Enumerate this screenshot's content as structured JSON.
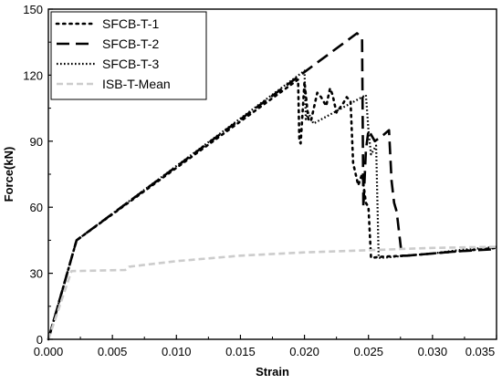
{
  "chart_data": {
    "type": "line",
    "xlabel": "Strain",
    "ylabel": "Force(kN)",
    "xlim": [
      0,
      0.035
    ],
    "ylim": [
      0,
      150
    ],
    "xticks": [
      "0.000",
      "0.005",
      "0.010",
      "0.015",
      "0.020",
      "0.025",
      "0.030",
      "0.035"
    ],
    "yticks": [
      "0",
      "30",
      "60",
      "90",
      "120",
      "150"
    ],
    "xtick_values": [
      0,
      0.005,
      0.01,
      0.015,
      0.02,
      0.025,
      0.03,
      0.035
    ],
    "ytick_values": [
      0,
      30,
      60,
      90,
      120,
      150
    ],
    "grid": false,
    "legend_position": "top-left",
    "series": [
      {
        "name": "SFCB-T-1",
        "style": "dotted-sparse",
        "color": "#000000",
        "points": [
          [
            0,
            0
          ],
          [
            0.0022,
            45
          ],
          [
            0.0195,
            118
          ],
          [
            0.0196,
            90
          ],
          [
            0.0197,
            89
          ],
          [
            0.02,
            117
          ],
          [
            0.0203,
            100
          ],
          [
            0.0205,
            99
          ],
          [
            0.021,
            112
          ],
          [
            0.0213,
            110
          ],
          [
            0.0217,
            106
          ],
          [
            0.022,
            114
          ],
          [
            0.0222,
            111
          ],
          [
            0.0225,
            103
          ],
          [
            0.023,
            107
          ],
          [
            0.0233,
            110
          ],
          [
            0.0236,
            108
          ],
          [
            0.0238,
            80
          ],
          [
            0.0242,
            70
          ],
          [
            0.0245,
            75
          ],
          [
            0.0248,
            62
          ],
          [
            0.025,
            60
          ],
          [
            0.0252,
            37
          ],
          [
            0.026,
            37.5
          ],
          [
            0.028,
            38
          ],
          [
            0.03,
            39
          ],
          [
            0.032,
            40
          ],
          [
            0.035,
            41.5
          ]
        ]
      },
      {
        "name": "SFCB-T-2",
        "style": "dashed",
        "color": "#000000",
        "points": [
          [
            0,
            0
          ],
          [
            0.0022,
            45
          ],
          [
            0.0241,
            139
          ],
          [
            0.0245,
            137
          ],
          [
            0.0246,
            60
          ],
          [
            0.0248,
            86
          ],
          [
            0.025,
            95
          ],
          [
            0.0255,
            90
          ],
          [
            0.0262,
            93
          ],
          [
            0.0266,
            95
          ],
          [
            0.0268,
            72
          ],
          [
            0.027,
            62
          ],
          [
            0.0272,
            58
          ],
          [
            0.0276,
            38
          ],
          [
            0.028,
            38
          ],
          [
            0.03,
            39
          ],
          [
            0.032,
            40
          ],
          [
            0.035,
            41
          ]
        ]
      },
      {
        "name": "SFCB-T-3",
        "style": "dotted-dense",
        "color": "#000000",
        "points": [
          [
            0,
            0
          ],
          [
            0.0022,
            45
          ],
          [
            0.02,
            122
          ],
          [
            0.0201,
            100
          ],
          [
            0.0203,
            103
          ],
          [
            0.0207,
            98
          ],
          [
            0.0245,
            110
          ],
          [
            0.0248,
            111
          ],
          [
            0.025,
            95
          ],
          [
            0.0252,
            84
          ],
          [
            0.0256,
            88
          ],
          [
            0.0258,
            37
          ],
          [
            0.026,
            37
          ],
          [
            0.028,
            38
          ],
          [
            0.03,
            39
          ],
          [
            0.032,
            40.5
          ],
          [
            0.035,
            42
          ]
        ]
      },
      {
        "name": "ISB-T-Mean",
        "style": "dashed-light",
        "color": "#cccccc",
        "points": [
          [
            0,
            0
          ],
          [
            0.0018,
            31
          ],
          [
            0.006,
            31.5
          ],
          [
            0.0063,
            33
          ],
          [
            0.01,
            35.5
          ],
          [
            0.015,
            38
          ],
          [
            0.02,
            39.5
          ],
          [
            0.025,
            40.5
          ],
          [
            0.03,
            41.5
          ],
          [
            0.035,
            42
          ]
        ]
      }
    ]
  }
}
